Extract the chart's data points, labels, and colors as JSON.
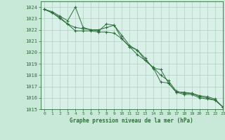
{
  "bg_color": "#c8e8d8",
  "plot_bg_color": "#d8f0e8",
  "grid_color": "#b0d0c0",
  "line_color": "#2d6e3a",
  "xlabel": "Graphe pression niveau de la mer (hPa)",
  "ylim": [
    1015,
    1024.5
  ],
  "yticks": [
    1015,
    1016,
    1017,
    1018,
    1019,
    1020,
    1021,
    1022,
    1023,
    1024
  ],
  "xlim": [
    -0.5,
    23
  ],
  "xticks": [
    0,
    1,
    2,
    3,
    4,
    5,
    6,
    7,
    8,
    9,
    10,
    11,
    12,
    13,
    14,
    15,
    16,
    17,
    18,
    19,
    20,
    21,
    22,
    23
  ],
  "series1": {
    "x": [
      0,
      1,
      2,
      3,
      4,
      5,
      6,
      7,
      8,
      9,
      10,
      11,
      12,
      13,
      14,
      15,
      16,
      17,
      18,
      19,
      20,
      21,
      22,
      23
    ],
    "y": [
      1023.8,
      1023.6,
      1023.2,
      1022.8,
      1024.0,
      1022.2,
      1022.0,
      1021.9,
      1022.5,
      1022.4,
      1021.5,
      1020.6,
      1020.2,
      1019.5,
      1018.6,
      1018.5,
      1017.3,
      1016.5,
      1016.5,
      1016.4,
      1016.2,
      1016.1,
      1015.9,
      1015.2
    ]
  },
  "series2": {
    "x": [
      0,
      1,
      2,
      3,
      4,
      5,
      6,
      7,
      8,
      9,
      10,
      11,
      12,
      13,
      14,
      15,
      16,
      17,
      18,
      19,
      20,
      21,
      22,
      23
    ],
    "y": [
      1023.8,
      1023.5,
      1023.1,
      1022.5,
      1022.2,
      1022.1,
      1022.0,
      1022.0,
      1022.2,
      1022.4,
      1021.2,
      1020.5,
      1020.2,
      1019.3,
      1018.7,
      1018.0,
      1017.5,
      1016.6,
      1016.4,
      1016.4,
      1016.1,
      1016.0,
      1015.8,
      1015.2
    ]
  },
  "series3": {
    "x": [
      0,
      1,
      2,
      3,
      4,
      5,
      6,
      7,
      8,
      9,
      10,
      11,
      12,
      13,
      14,
      15,
      16,
      17,
      18,
      19,
      20,
      21,
      22,
      23
    ],
    "y": [
      1023.8,
      1023.5,
      1023.0,
      1022.5,
      1021.9,
      1021.9,
      1021.9,
      1021.8,
      1021.8,
      1021.7,
      1021.2,
      1020.5,
      1019.8,
      1019.3,
      1018.7,
      1017.4,
      1017.3,
      1016.5,
      1016.3,
      1016.3,
      1016.0,
      1015.9,
      1015.8,
      1015.2
    ]
  }
}
